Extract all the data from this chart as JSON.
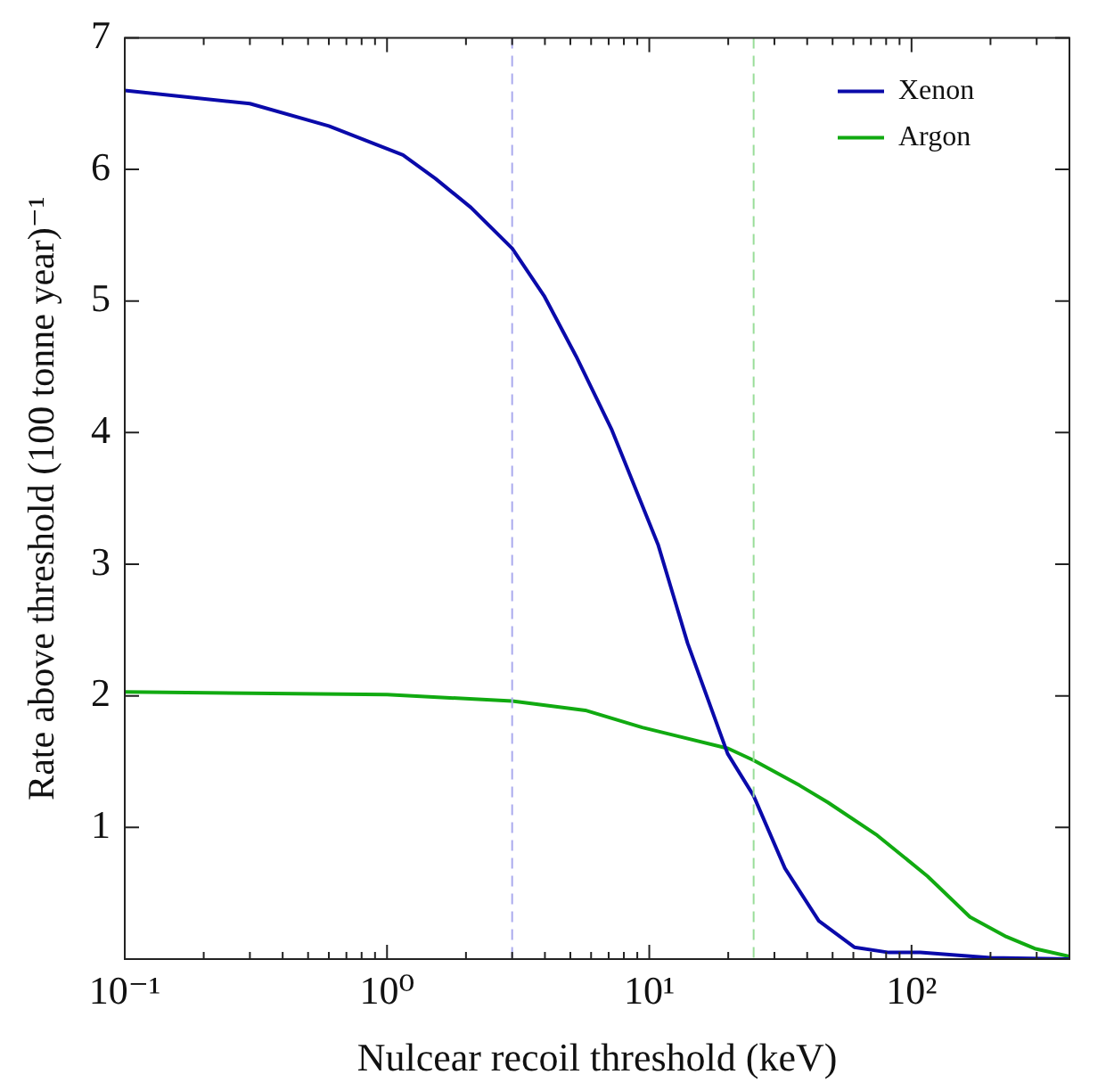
{
  "chart_data": {
    "type": "line",
    "xlabel": "Nulcear recoil threshold (keV)",
    "ylabel": "Rate above threshold (100 tonne year)⁻¹",
    "log": "x",
    "xlim": [
      0.1,
      400
    ],
    "ylim": [
      0,
      7
    ],
    "xticks": [
      {
        "value": 0.1,
        "label": "10⁻¹"
      },
      {
        "value": 1,
        "label": "10⁰"
      },
      {
        "value": 10,
        "label": "10¹"
      },
      {
        "value": 100,
        "label": "10²"
      }
    ],
    "yticks": [
      1,
      2,
      3,
      4,
      5,
      6,
      7
    ],
    "grid": false,
    "legend": "top right",
    "marker": "none",
    "line_style": "solid",
    "ref_lines": [
      {
        "axis": "x",
        "value": 3,
        "color": "#aaaaee",
        "line_style": "dashed"
      },
      {
        "axis": "x",
        "value": 25,
        "color": "#99dd99",
        "line_style": "dashed"
      }
    ],
    "series": [
      {
        "name": "Xenon",
        "color": "#0a0aaa",
        "x": [
          0.1,
          0.3,
          0.6,
          1.15,
          1.53,
          2.09,
          3,
          3.97,
          5.26,
          7.2,
          10.8,
          14,
          19.9,
          25,
          32.9,
          44.3,
          60.5,
          82,
          108,
          200,
          400
        ],
        "values": [
          6.6,
          6.5,
          6.33,
          6.11,
          5.93,
          5.71,
          5.4,
          5.04,
          4.58,
          4.02,
          3.15,
          2.4,
          1.56,
          1.24,
          0.69,
          0.29,
          0.09,
          0.05,
          0.05,
          0.01,
          0
        ]
      },
      {
        "name": "Argon",
        "color": "#11aa11",
        "x": [
          0.1,
          1,
          3,
          5.7,
          9.4,
          20,
          25,
          37.4,
          48,
          74,
          115,
          167,
          230,
          295,
          400
        ],
        "values": [
          2.03,
          2.01,
          1.96,
          1.89,
          1.76,
          1.6,
          1.51,
          1.32,
          1.19,
          0.94,
          0.63,
          0.32,
          0.17,
          0.08,
          0.02
        ]
      }
    ]
  }
}
